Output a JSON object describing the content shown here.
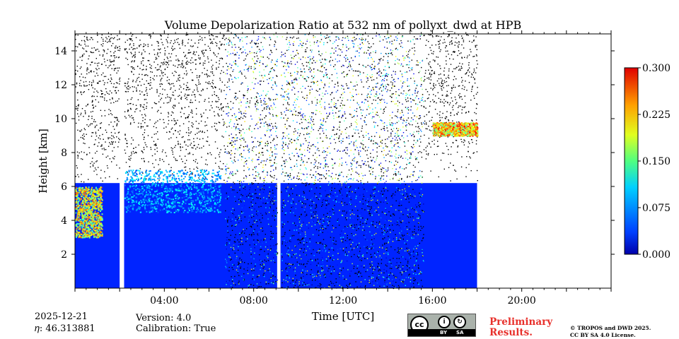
{
  "chart_data": {
    "type": "heatmap",
    "title": "Volume Depolarization Ratio at 532 nm of pollyxt_dwd at HPB",
    "xlabel": "Time [UTC]",
    "ylabel": "Height [km]",
    "xlim_hours": [
      0,
      24
    ],
    "ylim_km": [
      0,
      15
    ],
    "x_ticks": [
      {
        "hour": 4,
        "label": "04:00"
      },
      {
        "hour": 8,
        "label": "08:00"
      },
      {
        "hour": 12,
        "label": "12:00"
      },
      {
        "hour": 16,
        "label": "16:00"
      },
      {
        "hour": 20,
        "label": "20:00"
      }
    ],
    "y_ticks": [
      {
        "km": 2,
        "label": "2"
      },
      {
        "km": 4,
        "label": "4"
      },
      {
        "km": 6,
        "label": "6"
      },
      {
        "km": 8,
        "label": "8"
      },
      {
        "km": 10,
        "label": "10"
      },
      {
        "km": 12,
        "label": "12"
      },
      {
        "km": 14,
        "label": "14"
      }
    ],
    "colorbar": {
      "min": 0.0,
      "max": 0.3,
      "ticks": [
        {
          "value": 0.0,
          "label": "0.000"
        },
        {
          "value": 0.075,
          "label": "0.075"
        },
        {
          "value": 0.15,
          "label": "0.150"
        },
        {
          "value": 0.225,
          "label": "0.225"
        },
        {
          "value": 0.3,
          "label": "0.300"
        }
      ],
      "colormap": "jet"
    },
    "data_coverage_hours": [
      0,
      18
    ],
    "data_gaps_hours": [
      [
        2.0,
        2.2
      ],
      [
        9.05,
        9.2
      ]
    ],
    "boundary_layer_top_km": 6.2,
    "features": [
      {
        "name": "dust/depolarizing layer",
        "t_hours": [
          0.0,
          1.2
        ],
        "height_km": [
          3.0,
          6.0
        ],
        "value": 0.2
      },
      {
        "name": "aerosol layer",
        "t_hours": [
          2.2,
          6.5
        ],
        "height_km": [
          4.5,
          7.0
        ],
        "value": 0.1
      },
      {
        "name": "cirrus",
        "t_hours": [
          16.0,
          18.0
        ],
        "height_km": [
          9.0,
          9.8
        ],
        "value": 0.22
      },
      {
        "name": "noisy daytime signal",
        "t_hours": [
          6.7,
          15.6
        ],
        "height_km": [
          0.0,
          15.0
        ],
        "value": 0.1
      }
    ]
  },
  "info": {
    "date": "2025-12-21",
    "eta": "𝜂: 46.313881",
    "version": "Version: 4.0",
    "calibration": "Calibration: True"
  },
  "license": {
    "cc": "cc",
    "by": "BY",
    "sa": "SA",
    "preliminary_line1": "Preliminary",
    "preliminary_line2": "Results.",
    "copyright_line1": "© TROPOS and DWD 2025.",
    "copyright_line2": "CC BY SA 4.0 License."
  }
}
